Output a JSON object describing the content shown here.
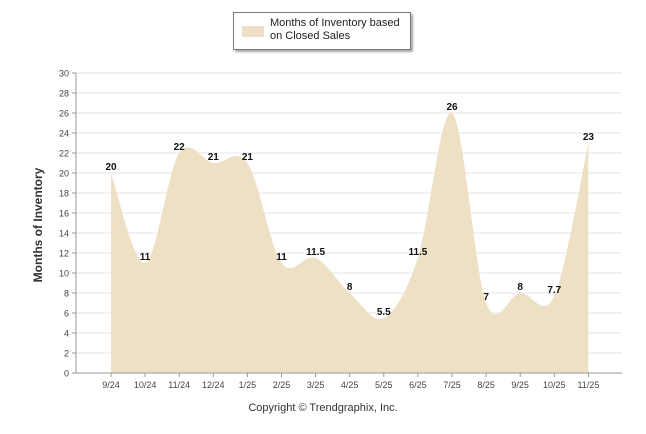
{
  "chart_data": {
    "type": "area",
    "categories": [
      "9/24",
      "10/24",
      "11/24",
      "12/24",
      "1/25",
      "2/25",
      "3/25",
      "4/25",
      "5/25",
      "6/25",
      "7/25",
      "8/25",
      "9/25",
      "10/25",
      "11/25"
    ],
    "series": [
      {
        "name": "Months of Inventory based on Closed Sales",
        "values": [
          20,
          11,
          22,
          21,
          21,
          11,
          11.5,
          8,
          5.5,
          11.5,
          26,
          7,
          8,
          7.7,
          23
        ]
      }
    ],
    "data_labels": [
      "20",
      "11",
      "22",
      "21",
      "21",
      "11",
      "11.5",
      "8",
      "5.5",
      "11.5",
      "26",
      "7",
      "8",
      "7.7",
      "23"
    ],
    "ylabel": "Months of Inventory",
    "ylim": [
      0,
      30
    ],
    "yticks": [
      0,
      2,
      4,
      6,
      8,
      10,
      12,
      14,
      16,
      18,
      20,
      22,
      24,
      26,
      28,
      30
    ],
    "grid": true,
    "legend_position": "top-center",
    "fill_color": "#ede0c5",
    "grid_color": "#e6e6e6",
    "axis_color": "#999999"
  },
  "legend": {
    "label_line1": "Months of Inventory based",
    "label_line2": "on Closed Sales"
  },
  "axis": {
    "ylabel": "Months of Inventory"
  },
  "footer": {
    "copyright": "Copyright © Trendgraphix, Inc."
  }
}
